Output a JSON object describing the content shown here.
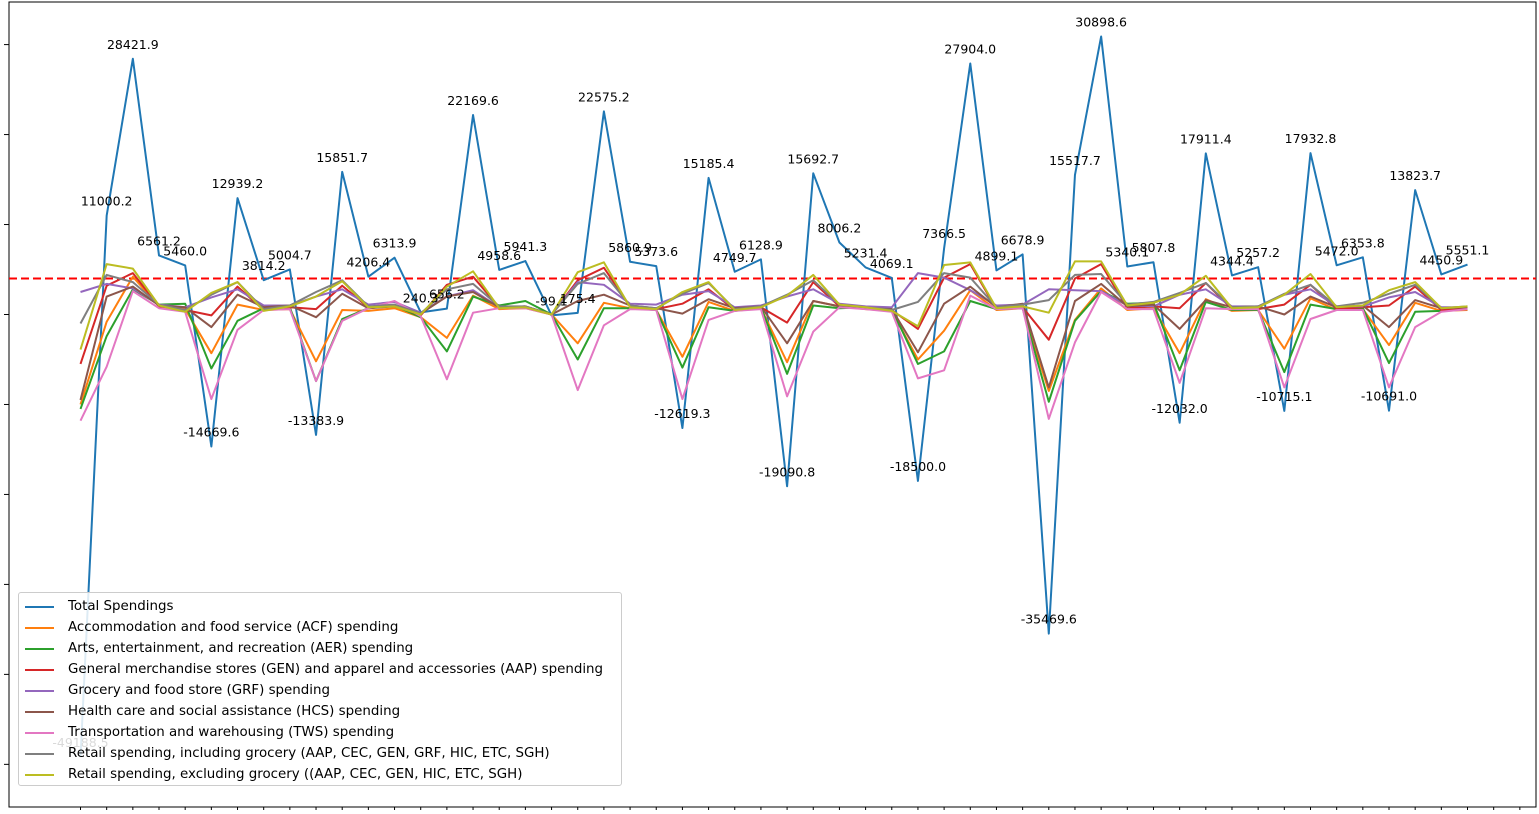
{
  "chart_data": {
    "type": "line",
    "title": "",
    "xlabel": "",
    "ylabel": "",
    "ylim": [
      -50000,
      35000
    ],
    "xlim": [
      -1,
      55
    ],
    "reference_line": {
      "value": 4000,
      "style": "dashed",
      "color": "#ff0000"
    },
    "x_tick_labels_visible": false,
    "y_tick_labels_visible": false,
    "grid": false,
    "legend_position": "lower-left",
    "series": [
      {
        "name": "Total Spendings",
        "color": "#1f77b4",
        "values": [
          -49188.5,
          11000.2,
          28421.9,
          6561.2,
          5460.0,
          -14669.6,
          12939.2,
          3814.2,
          5004.7,
          -13383.9,
          15851.7,
          4206.4,
          6313.9,
          240.3,
          656.2,
          22169.6,
          4958.6,
          5941.3,
          -99.1,
          175.4,
          22575.2,
          5860.9,
          5373.6,
          -12619.3,
          15185.4,
          4749.7,
          6128.9,
          -19090.8,
          15692.7,
          8006.2,
          5231.4,
          4069.1,
          -18500.0,
          7366.5,
          27904.0,
          4899.1,
          6678.9,
          -35469.6,
          15517.7,
          30898.6,
          5340.1,
          5807.8,
          -12032.0,
          17911.4,
          4344.4,
          5257.2,
          -10715.1,
          17932.8,
          5472.0,
          6353.8,
          -10691.0,
          13823.7,
          4450.9,
          5551.1
        ]
      },
      {
        "name": "Accommodation and food service (ACF) spending",
        "color": "#ff7f0e",
        "values": [
          -10000,
          -800,
          4200,
          900,
          600,
          -4300,
          1100,
          500,
          600,
          -5200,
          500,
          400,
          700,
          -300,
          -2600,
          2100,
          600,
          700,
          0,
          -3200,
          1300,
          700,
          500,
          -4700,
          1400,
          400,
          700,
          -5300,
          1500,
          900,
          600,
          400,
          -5000,
          -1800,
          2700,
          500,
          700,
          -8500,
          -600,
          2900,
          500,
          700,
          -4300,
          1700,
          400,
          500,
          -3800,
          1800,
          500,
          600,
          -3400,
          1300,
          400,
          500
        ]
      },
      {
        "name": "Arts, entertainment, and recreation (AER)  spending",
        "color": "#2ca02c",
        "values": [
          -10500,
          -2400,
          2800,
          1100,
          1200,
          -6000,
          -700,
          700,
          800,
          -7400,
          -500,
          700,
          1000,
          -300,
          -4100,
          2000,
          1000,
          1500,
          0,
          -5000,
          700,
          700,
          500,
          -5900,
          800,
          400,
          800,
          -6600,
          1000,
          700,
          800,
          600,
          -5500,
          -4100,
          1500,
          600,
          700,
          -9700,
          -700,
          2600,
          1200,
          1300,
          -6200,
          1400,
          500,
          500,
          -6400,
          1100,
          600,
          700,
          -5400,
          300,
          400,
          600
        ]
      },
      {
        "name": "General merchandise stores (GEN) and apparel and accessories (AAP) spending",
        "color": "#d62728",
        "values": [
          -5500,
          3200,
          4600,
          900,
          500,
          -100,
          3100,
          500,
          800,
          600,
          3200,
          800,
          1000,
          -100,
          3300,
          4200,
          800,
          900,
          0,
          3800,
          5200,
          900,
          600,
          1200,
          2800,
          500,
          800,
          -900,
          3600,
          900,
          700,
          500,
          -1600,
          4100,
          5600,
          600,
          800,
          -2800,
          4000,
          5600,
          700,
          900,
          700,
          3500,
          600,
          600,
          1100,
          3300,
          600,
          800,
          1000,
          3100,
          500,
          600
        ]
      },
      {
        "name": "Grocery and food store (GRF)  spending",
        "color": "#9467bd",
        "values": [
          2500,
          3400,
          2900,
          1100,
          800,
          1900,
          2800,
          1000,
          1000,
          2000,
          2800,
          1100,
          1400,
          200,
          2000,
          2700,
          800,
          900,
          0,
          3600,
          3300,
          1200,
          1100,
          2200,
          2600,
          800,
          1000,
          2000,
          2800,
          1200,
          900,
          800,
          4600,
          4100,
          2700,
          1000,
          1100,
          2800,
          2700,
          2600,
          1000,
          900,
          2200,
          2800,
          900,
          900,
          2200,
          2800,
          900,
          900,
          1900,
          2500,
          800,
          800
        ]
      },
      {
        "name": "Health care and social assistance (HCS) spending",
        "color": "#8c564b",
        "values": [
          -9500,
          2000,
          3100,
          1000,
          800,
          -1400,
          2200,
          800,
          1000,
          -300,
          2300,
          700,
          900,
          100,
          2000,
          2500,
          800,
          900,
          0,
          1500,
          2200,
          1000,
          700,
          100,
          1700,
          700,
          900,
          -3200,
          1500,
          900,
          700,
          600,
          -4200,
          1200,
          3100,
          800,
          1200,
          -8100,
          1500,
          3400,
          900,
          1100,
          -1600,
          1600,
          800,
          900,
          0,
          2000,
          800,
          1000,
          -1400,
          1600,
          700,
          800
        ]
      },
      {
        "name": "Transportation and warehousing (TWS)  spending",
        "color": "#e377c2",
        "values": [
          -11800,
          -5800,
          2600,
          700,
          300,
          -9400,
          -1700,
          500,
          600,
          -7400,
          -700,
          700,
          1500,
          -200,
          -7200,
          200,
          700,
          700,
          0,
          -8400,
          -1200,
          600,
          500,
          -9400,
          -600,
          400,
          600,
          -9100,
          -1900,
          800,
          600,
          300,
          -7100,
          -6200,
          2100,
          600,
          700,
          -11600,
          -3100,
          2500,
          600,
          600,
          -7600,
          700,
          600,
          600,
          -8100,
          -500,
          500,
          500,
          -8100,
          -1400,
          300,
          600
        ]
      },
      {
        "name": "Retail spending, including grocery  (AAP, CEC, GEN, GRF, HIC, ETC, SGH)",
        "color": "#7f7f7f",
        "values": [
          -1000,
          4400,
          3600,
          1100,
          500,
          2200,
          3600,
          600,
          1000,
          2500,
          3800,
          900,
          1100,
          100,
          2800,
          3400,
          900,
          900,
          0,
          3400,
          4600,
          1000,
          700,
          2300,
          3500,
          600,
          900,
          2200,
          3800,
          1100,
          800,
          500,
          1400,
          4600,
          4100,
          800,
          1100,
          1600,
          4400,
          4500,
          1100,
          1400,
          2400,
          3500,
          800,
          900,
          2300,
          3300,
          900,
          1300,
          2300,
          3300,
          700,
          900
        ]
      },
      {
        "name": "Retail spending, excluding grocery ((AAP, CEC, GEN, HIC, ETC, SGH)",
        "color": "#bcbd22",
        "values": [
          -3900,
          5600,
          5100,
          1000,
          300,
          2400,
          3600,
          400,
          900,
          2000,
          3700,
          800,
          900,
          0,
          3100,
          4800,
          700,
          800,
          0,
          4700,
          5800,
          800,
          600,
          2500,
          3600,
          500,
          800,
          2100,
          4400,
          1100,
          800,
          400,
          -1300,
          5500,
          5800,
          700,
          900,
          200,
          5900,
          5900,
          1000,
          1300,
          2200,
          4300,
          700,
          800,
          2200,
          4500,
          800,
          1000,
          2700,
          3600,
          700,
          900
        ]
      }
    ],
    "annotations": [
      "-49188.5",
      "11000.2",
      "28421.9",
      "6561.2",
      "5460.0",
      "-14669.6",
      "12939.2",
      "3814.2",
      "5004.7",
      "-13383.9",
      "15851.7",
      "4206.4",
      "6313.9",
      "240.3",
      "656.2",
      "22169.6",
      "4958.6",
      "5941.3",
      "-99.1",
      "175.4",
      "22575.2",
      "5860.9",
      "5373.6",
      "-12619.3",
      "15185.4",
      "4749.7",
      "6128.9",
      "-19090.8",
      "15692.7",
      "8006.2",
      "5231.4",
      "4069.1",
      "-18500.0",
      "7366.5",
      "27904.0",
      "4899.1",
      "6678.9",
      "-35469.6",
      "15517.7",
      "30898.6",
      "5340.1",
      "5807.8",
      "-12032.0",
      "17911.4",
      "4344.4",
      "5257.2",
      "-10715.1",
      "17932.8",
      "5472.0",
      "6353.8",
      "-10691.0",
      "13823.7",
      "4450.9",
      "5551.1"
    ]
  }
}
